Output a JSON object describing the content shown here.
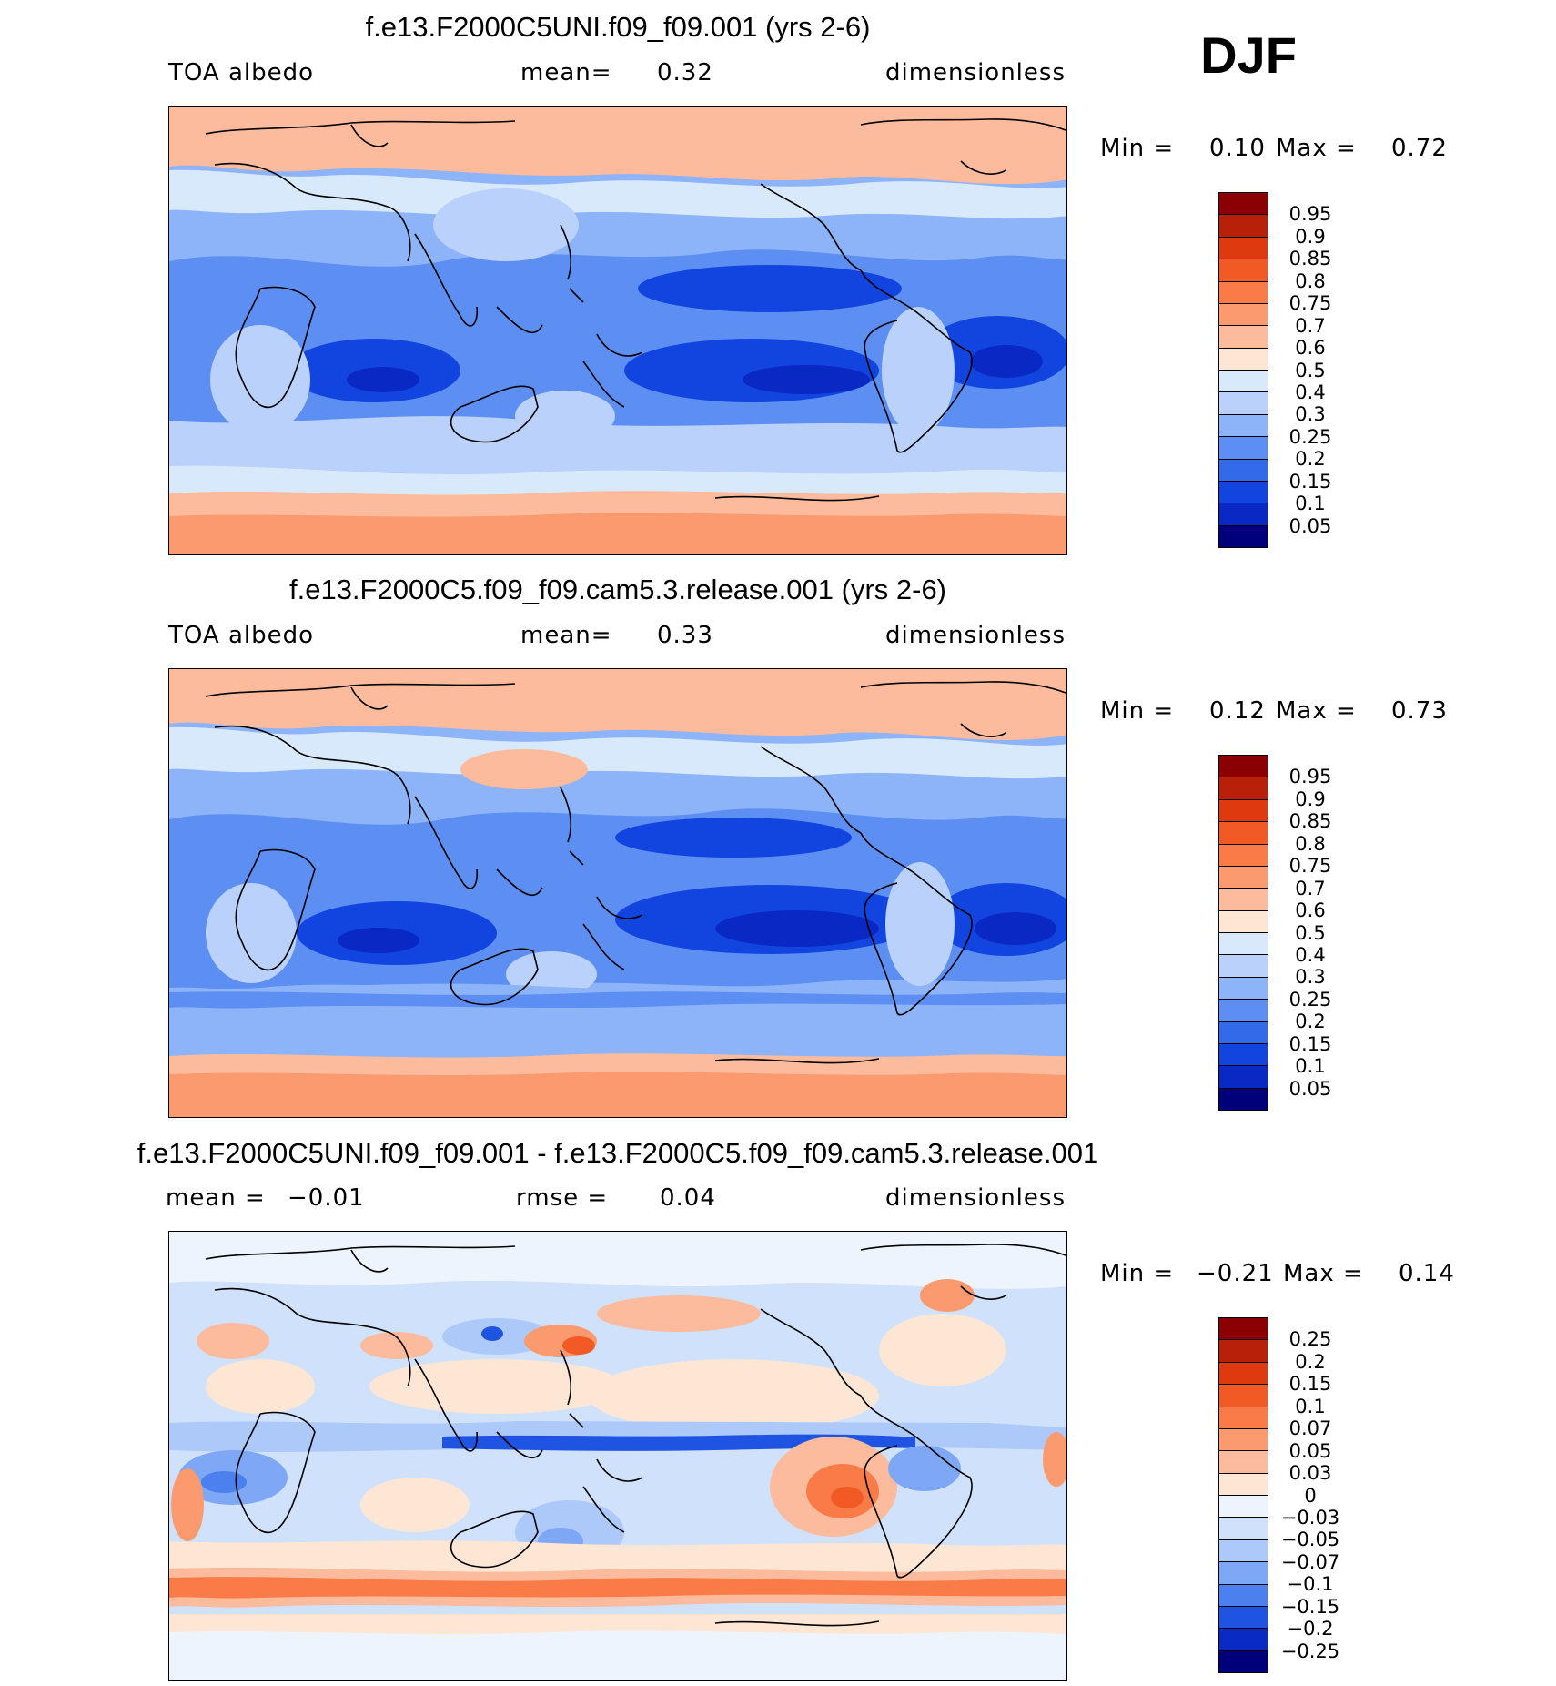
{
  "season": "DJF",
  "panels": [
    {
      "id": "p1",
      "title": "f.e13.F2000C5UNI.f09_f09.001 (yrs 2-6)",
      "left_label": "TOA albedo",
      "center_label": "mean=",
      "center_value": "0.32",
      "right_label": "dimensionless",
      "min_label": "Min =",
      "min_value": "0.10",
      "max_label": "Max =",
      "max_value": "0.72"
    },
    {
      "id": "p2",
      "title": "f.e13.F2000C5.f09_f09.cam5.3.release.001 (yrs 2-6)",
      "left_label": "TOA albedo",
      "center_label": "mean=",
      "center_value": "0.33",
      "right_label": "dimensionless",
      "min_label": "Min =",
      "min_value": "0.12",
      "max_label": "Max =",
      "max_value": "0.73"
    },
    {
      "id": "p3",
      "title": "f.e13.F2000C5UNI.f09_f09.001 - f.e13.F2000C5.f09_f09.cam5.3.release.001",
      "left_label": "mean =",
      "left_value": "−0.01",
      "center_label": "rmse =",
      "center_value": "0.04",
      "right_label": "dimensionless",
      "min_label": "Min =",
      "min_value": "−0.21",
      "max_label": "Max =",
      "max_value": "0.14"
    }
  ],
  "colorbar_abs": {
    "labels": [
      "0.95",
      "0.9",
      "0.85",
      "0.8",
      "0.75",
      "0.7",
      "0.6",
      "0.5",
      "0.4",
      "0.3",
      "0.25",
      "0.2",
      "0.15",
      "0.1",
      "0.05"
    ],
    "colors": [
      "#8b0000",
      "#b8200a",
      "#dd3a0f",
      "#f25a25",
      "#f97c48",
      "#fb9a6e",
      "#fcbb9c",
      "#fde6d3",
      "#d9e9fc",
      "#b9d1fb",
      "#8db3f8",
      "#5d8ff2",
      "#336ae9",
      "#1245df",
      "#0a28c4",
      "#00007a"
    ]
  },
  "colorbar_diff": {
    "labels": [
      "0.25",
      "0.2",
      "0.15",
      "0.1",
      "0.07",
      "0.05",
      "0.03",
      "0",
      "−0.03",
      "−0.05",
      "−0.07",
      "−0.1",
      "−0.15",
      "−0.2",
      "−0.25"
    ],
    "colors": [
      "#8b0000",
      "#b8200a",
      "#dd3a0f",
      "#f25a25",
      "#f97c48",
      "#fb9a6e",
      "#fcbb9c",
      "#fde6d3",
      "#eef4fd",
      "#d0e1fc",
      "#adc9f9",
      "#7ea7f6",
      "#4c80ee",
      "#1f54e3",
      "#0a2ac4",
      "#00007a"
    ]
  }
}
